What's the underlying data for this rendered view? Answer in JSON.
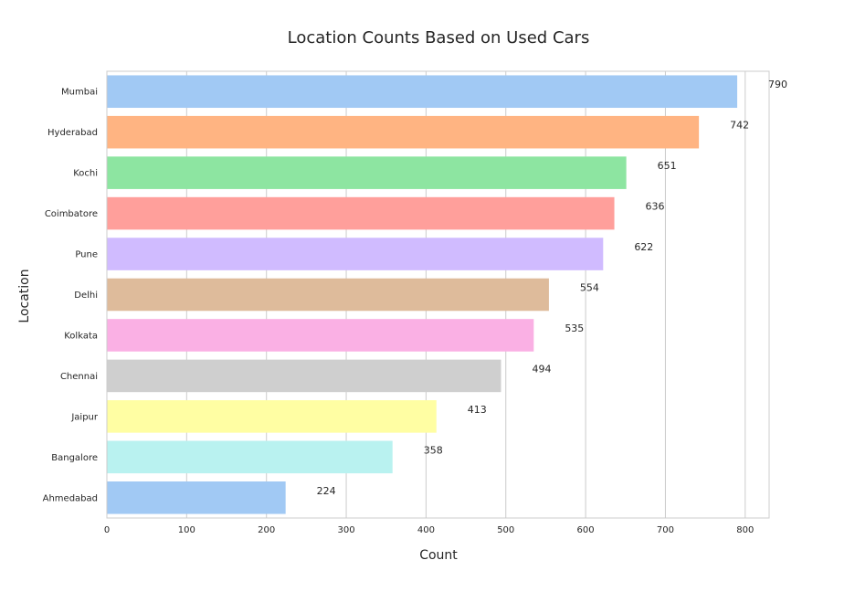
{
  "chart_data": {
    "type": "bar",
    "orientation": "horizontal",
    "title": "Location Counts Based on Used Cars",
    "xlabel": "Count",
    "ylabel": "Location",
    "xlim": [
      0,
      830
    ],
    "xticks": [
      0,
      100,
      200,
      300,
      400,
      500,
      600,
      700,
      800
    ],
    "grid": true,
    "categories": [
      "Mumbai",
      "Hyderabad",
      "Kochi",
      "Coimbatore",
      "Pune",
      "Delhi",
      "Kolkata",
      "Chennai",
      "Jaipur",
      "Bangalore",
      "Ahmedabad"
    ],
    "values": [
      790,
      742,
      651,
      636,
      622,
      554,
      535,
      494,
      413,
      358,
      224
    ],
    "colors": [
      "#a1c9f4",
      "#ffb482",
      "#8de5a1",
      "#ff9f9b",
      "#d0bbff",
      "#debb9b",
      "#fab0e4",
      "#cfcfcf",
      "#fffea3",
      "#b9f2f0",
      "#a1c9f4"
    ]
  }
}
